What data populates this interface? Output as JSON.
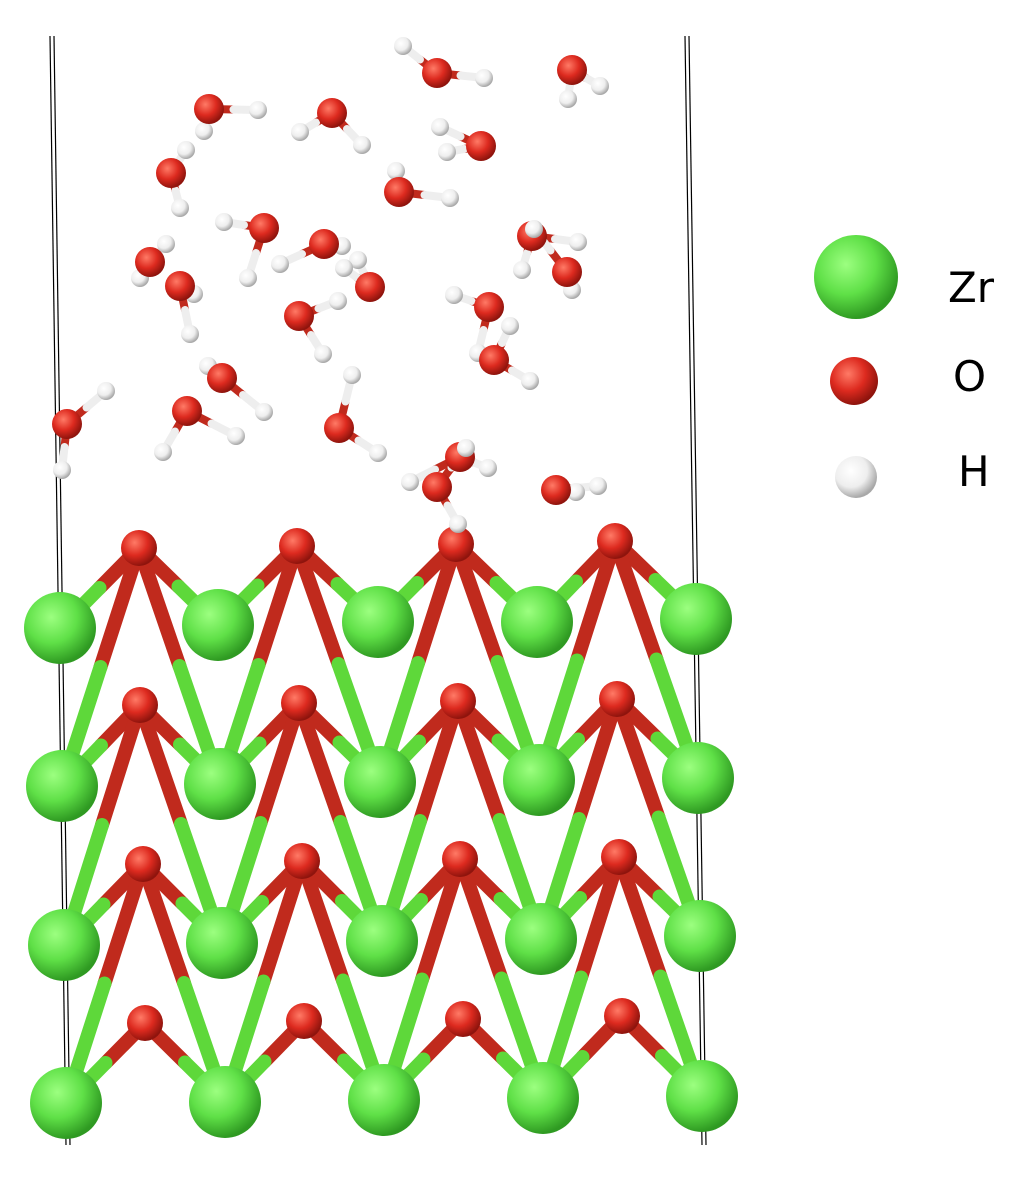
{
  "legend": {
    "items": [
      {
        "symbol": "Zr",
        "label": "Zr",
        "color": "#5fe047"
      },
      {
        "symbol": "O",
        "label": "O",
        "color": "#dd2a1f"
      },
      {
        "symbol": "H",
        "label": "H",
        "color": "#f0f0f0"
      }
    ]
  },
  "structure": {
    "bond_color_o": "#c02a1d",
    "bond_color_zr": "#5ed83a",
    "bond_color_h": "#eeeeee"
  }
}
